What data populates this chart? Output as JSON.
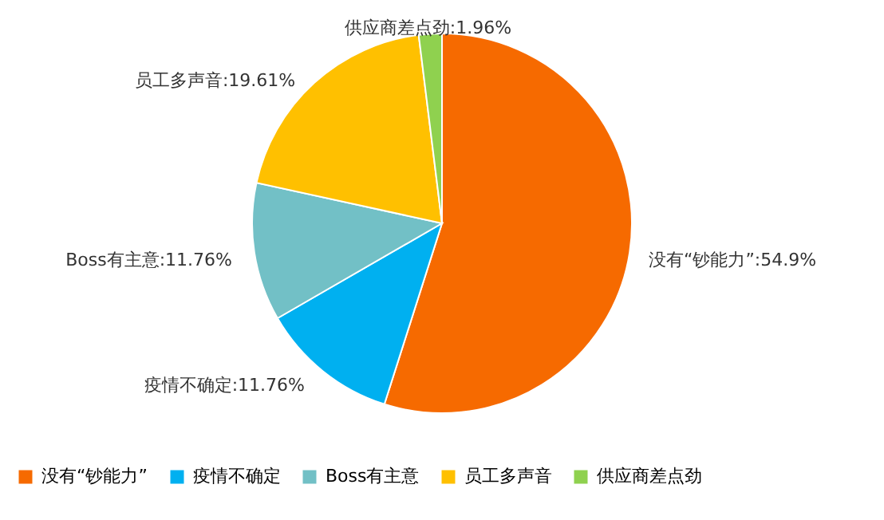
{
  "chart_data": {
    "type": "pie",
    "categories": [
      "没有“钞能力”",
      "疫情不确定",
      "Boss有主意",
      "员工多声音",
      "供应商差点劲"
    ],
    "values": [
      54.9,
      11.76,
      11.76,
      19.61,
      1.96
    ],
    "colors": [
      "#f66a00",
      "#00b0f0",
      "#72c0c6",
      "#ffc000",
      "#8fd14f"
    ],
    "value_labels": [
      "没有“钞能力”:54.9%",
      "疫情不确定:11.76%",
      "Boss有主意:11.76%",
      "员工多声音:19.61%",
      "供应商差点劲:1.96%"
    ],
    "legend": "bottom"
  }
}
